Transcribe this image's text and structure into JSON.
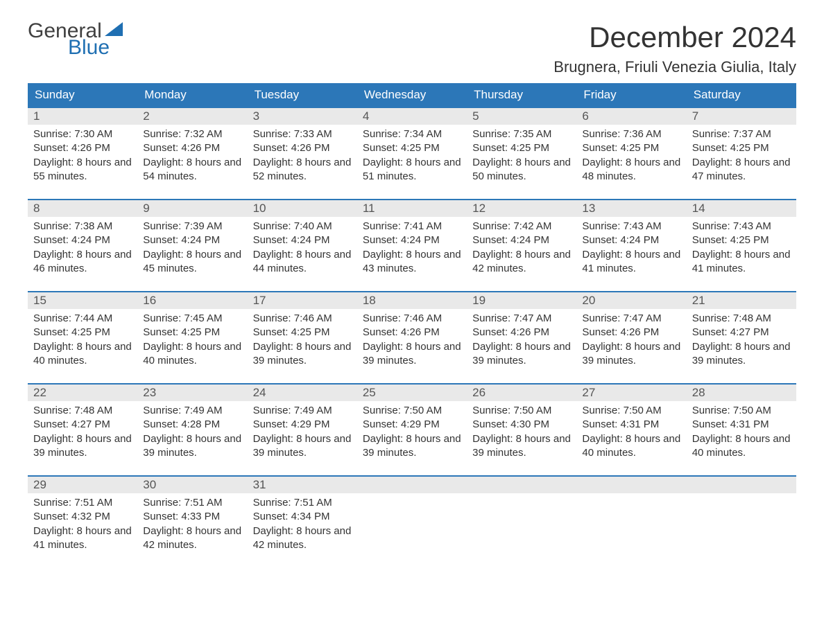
{
  "logo": {
    "word1": "General",
    "word2": "Blue"
  },
  "title": "December 2024",
  "location": "Brugnera, Friuli Venezia Giulia, Italy",
  "colors": {
    "header_bg": "#2c77b8",
    "header_text": "#ffffff",
    "daynum_bg": "#e9e9e9",
    "week_top_border": "#2c77b8",
    "logo_accent": "#1f6fb2",
    "body_text": "#333333"
  },
  "weekdays": [
    "Sunday",
    "Monday",
    "Tuesday",
    "Wednesday",
    "Thursday",
    "Friday",
    "Saturday"
  ],
  "weeks": [
    [
      {
        "day": 1,
        "sunrise": "7:30 AM",
        "sunset": "4:26 PM",
        "daylight": "8 hours and 55 minutes."
      },
      {
        "day": 2,
        "sunrise": "7:32 AM",
        "sunset": "4:26 PM",
        "daylight": "8 hours and 54 minutes."
      },
      {
        "day": 3,
        "sunrise": "7:33 AM",
        "sunset": "4:26 PM",
        "daylight": "8 hours and 52 minutes."
      },
      {
        "day": 4,
        "sunrise": "7:34 AM",
        "sunset": "4:25 PM",
        "daylight": "8 hours and 51 minutes."
      },
      {
        "day": 5,
        "sunrise": "7:35 AM",
        "sunset": "4:25 PM",
        "daylight": "8 hours and 50 minutes."
      },
      {
        "day": 6,
        "sunrise": "7:36 AM",
        "sunset": "4:25 PM",
        "daylight": "8 hours and 48 minutes."
      },
      {
        "day": 7,
        "sunrise": "7:37 AM",
        "sunset": "4:25 PM",
        "daylight": "8 hours and 47 minutes."
      }
    ],
    [
      {
        "day": 8,
        "sunrise": "7:38 AM",
        "sunset": "4:24 PM",
        "daylight": "8 hours and 46 minutes."
      },
      {
        "day": 9,
        "sunrise": "7:39 AM",
        "sunset": "4:24 PM",
        "daylight": "8 hours and 45 minutes."
      },
      {
        "day": 10,
        "sunrise": "7:40 AM",
        "sunset": "4:24 PM",
        "daylight": "8 hours and 44 minutes."
      },
      {
        "day": 11,
        "sunrise": "7:41 AM",
        "sunset": "4:24 PM",
        "daylight": "8 hours and 43 minutes."
      },
      {
        "day": 12,
        "sunrise": "7:42 AM",
        "sunset": "4:24 PM",
        "daylight": "8 hours and 42 minutes."
      },
      {
        "day": 13,
        "sunrise": "7:43 AM",
        "sunset": "4:24 PM",
        "daylight": "8 hours and 41 minutes."
      },
      {
        "day": 14,
        "sunrise": "7:43 AM",
        "sunset": "4:25 PM",
        "daylight": "8 hours and 41 minutes."
      }
    ],
    [
      {
        "day": 15,
        "sunrise": "7:44 AM",
        "sunset": "4:25 PM",
        "daylight": "8 hours and 40 minutes."
      },
      {
        "day": 16,
        "sunrise": "7:45 AM",
        "sunset": "4:25 PM",
        "daylight": "8 hours and 40 minutes."
      },
      {
        "day": 17,
        "sunrise": "7:46 AM",
        "sunset": "4:25 PM",
        "daylight": "8 hours and 39 minutes."
      },
      {
        "day": 18,
        "sunrise": "7:46 AM",
        "sunset": "4:26 PM",
        "daylight": "8 hours and 39 minutes."
      },
      {
        "day": 19,
        "sunrise": "7:47 AM",
        "sunset": "4:26 PM",
        "daylight": "8 hours and 39 minutes."
      },
      {
        "day": 20,
        "sunrise": "7:47 AM",
        "sunset": "4:26 PM",
        "daylight": "8 hours and 39 minutes."
      },
      {
        "day": 21,
        "sunrise": "7:48 AM",
        "sunset": "4:27 PM",
        "daylight": "8 hours and 39 minutes."
      }
    ],
    [
      {
        "day": 22,
        "sunrise": "7:48 AM",
        "sunset": "4:27 PM",
        "daylight": "8 hours and 39 minutes."
      },
      {
        "day": 23,
        "sunrise": "7:49 AM",
        "sunset": "4:28 PM",
        "daylight": "8 hours and 39 minutes."
      },
      {
        "day": 24,
        "sunrise": "7:49 AM",
        "sunset": "4:29 PM",
        "daylight": "8 hours and 39 minutes."
      },
      {
        "day": 25,
        "sunrise": "7:50 AM",
        "sunset": "4:29 PM",
        "daylight": "8 hours and 39 minutes."
      },
      {
        "day": 26,
        "sunrise": "7:50 AM",
        "sunset": "4:30 PM",
        "daylight": "8 hours and 39 minutes."
      },
      {
        "day": 27,
        "sunrise": "7:50 AM",
        "sunset": "4:31 PM",
        "daylight": "8 hours and 40 minutes."
      },
      {
        "day": 28,
        "sunrise": "7:50 AM",
        "sunset": "4:31 PM",
        "daylight": "8 hours and 40 minutes."
      }
    ],
    [
      {
        "day": 29,
        "sunrise": "7:51 AM",
        "sunset": "4:32 PM",
        "daylight": "8 hours and 41 minutes."
      },
      {
        "day": 30,
        "sunrise": "7:51 AM",
        "sunset": "4:33 PM",
        "daylight": "8 hours and 42 minutes."
      },
      {
        "day": 31,
        "sunrise": "7:51 AM",
        "sunset": "4:34 PM",
        "daylight": "8 hours and 42 minutes."
      },
      null,
      null,
      null,
      null
    ]
  ],
  "labels": {
    "sunrise": "Sunrise: ",
    "sunset": "Sunset: ",
    "daylight": "Daylight: "
  }
}
